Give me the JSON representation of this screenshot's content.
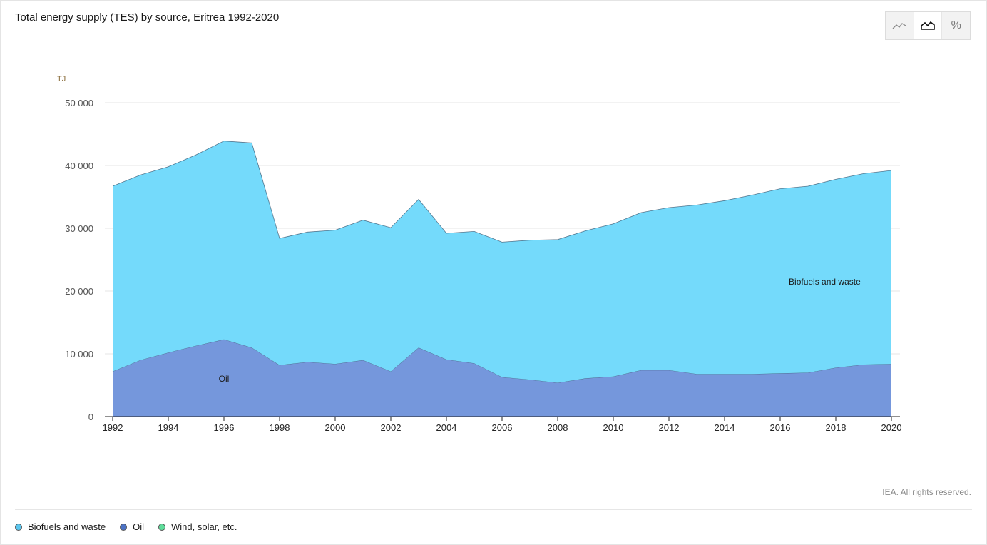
{
  "title": "Total energy supply (TES) by source, Eritrea 1992-2020",
  "toggle": {
    "line_icon": "line-chart-icon",
    "area_icon": "area-chart-icon",
    "percent_label": "%"
  },
  "copyright": "IEA. All rights reserved.",
  "legend": [
    {
      "label": "Biofuels and waste",
      "color": "#5bc6ee"
    },
    {
      "label": "Oil",
      "color": "#4c72c4"
    },
    {
      "label": "Wind, solar, etc.",
      "color": "#5fdc9a"
    }
  ],
  "chart_data": {
    "type": "area",
    "stacked": true,
    "unit_label": "TJ",
    "ylim": [
      0,
      50000
    ],
    "yticks": [
      0,
      10000,
      20000,
      30000,
      40000,
      50000
    ],
    "ytick_labels": [
      "0",
      "10 000",
      "20 000",
      "30 000",
      "40 000",
      "50 000"
    ],
    "xticks": [
      1992,
      1994,
      1996,
      1998,
      2000,
      2002,
      2004,
      2006,
      2008,
      2010,
      2012,
      2014,
      2016,
      2018,
      2020
    ],
    "x": [
      1992,
      1993,
      1994,
      1995,
      1996,
      1997,
      1998,
      1999,
      2000,
      2001,
      2002,
      2003,
      2004,
      2005,
      2006,
      2007,
      2008,
      2009,
      2010,
      2011,
      2012,
      2013,
      2014,
      2015,
      2016,
      2017,
      2018,
      2019,
      2020
    ],
    "series": [
      {
        "name": "Oil",
        "color": "#7597dc",
        "values": [
          7200,
          9000,
          10200,
          11300,
          12300,
          11000,
          8200,
          8700,
          8400,
          9000,
          7200,
          11000,
          9100,
          8500,
          6300,
          5900,
          5400,
          6100,
          6400,
          7400,
          7400,
          6800,
          6800,
          6800,
          6900,
          7000,
          7800,
          8300,
          8400
        ]
      },
      {
        "name": "Biofuels and waste",
        "color": "#74dafb",
        "values": [
          29500,
          29500,
          29600,
          30400,
          31600,
          32600,
          20200,
          20700,
          21300,
          22300,
          22900,
          23600,
          20100,
          21000,
          21500,
          22200,
          22800,
          23500,
          24300,
          25100,
          25900,
          26900,
          27600,
          28500,
          29400,
          29700,
          30000,
          30400,
          30800
        ]
      }
    ],
    "annotations": [
      {
        "label": "Oil",
        "x": 1996,
        "y": 6000
      },
      {
        "label": "Biofuels and waste",
        "x": 2017.6,
        "y": 21500
      }
    ]
  }
}
